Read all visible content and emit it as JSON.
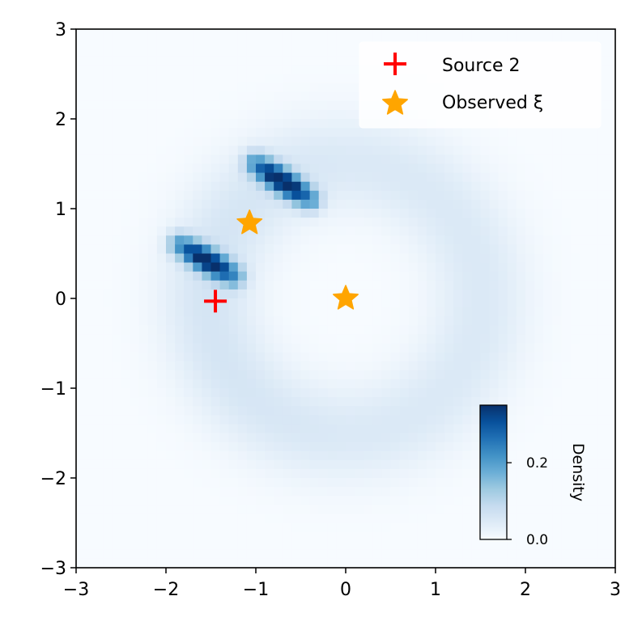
{
  "chart_data": {
    "type": "heatmap",
    "title": "",
    "xlabel": "",
    "ylabel": "",
    "xlim": [
      -3,
      3
    ],
    "ylim": [
      -3,
      3
    ],
    "xticks": [
      "−3",
      "−2",
      "−1",
      "0",
      "1",
      "2",
      "3"
    ],
    "yticks": [
      "−3",
      "−2",
      "−1",
      "0",
      "1",
      "2",
      "3"
    ],
    "grid": false,
    "colormap": "Blues",
    "density_description": {
      "ring": {
        "center": [
          0,
          0
        ],
        "radius": 1.5,
        "peak_density": 0.05
      },
      "blobs": [
        {
          "from": [
            -1.0,
            1.5
          ],
          "to": [
            -0.4,
            1.1
          ],
          "peak_density": 0.35
        },
        {
          "from": [
            -1.85,
            0.6
          ],
          "to": [
            -1.25,
            0.25
          ],
          "peak_density": 0.34
        }
      ]
    },
    "series": [
      {
        "name": "Source 2",
        "marker": "plus",
        "color": "#ff0000",
        "points": [
          {
            "x": -1.45,
            "y": -0.03
          }
        ]
      },
      {
        "name": "Observed ξ",
        "marker": "star",
        "color": "#ffa500",
        "points": [
          {
            "x": -1.07,
            "y": 0.84
          },
          {
            "x": 0.0,
            "y": 0.0
          }
        ]
      }
    ],
    "legend": {
      "placement": "top-right",
      "entries": [
        {
          "label": "Source 2",
          "marker": "plus",
          "color": "#ff0000"
        },
        {
          "label": "Observed ξ",
          "marker": "star",
          "color": "#ffa500"
        }
      ]
    },
    "colorbar": {
      "label": "Density",
      "range": [
        0.0,
        0.35
      ],
      "ticks": [
        {
          "value": 0.0,
          "label": "0.0"
        },
        {
          "value": 0.2,
          "label": "0.2"
        }
      ],
      "placement": "inset lower-right"
    }
  }
}
